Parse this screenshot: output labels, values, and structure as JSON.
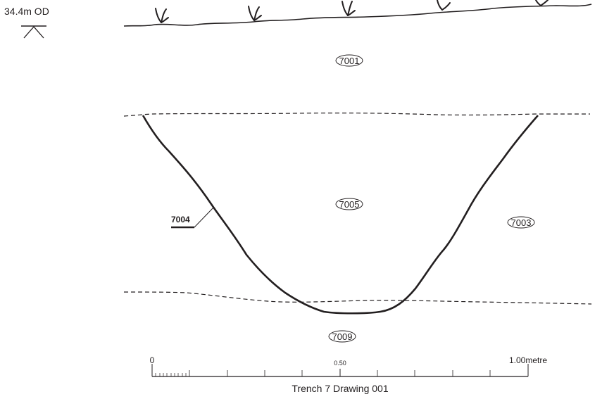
{
  "datum": {
    "label": "34.4m OD"
  },
  "contexts": {
    "topsoil": "7001",
    "fill": "7005",
    "natural": "7003",
    "lower": "7009",
    "cut": "7004"
  },
  "scale": {
    "start_label": "0",
    "mid_label": "0.50",
    "end_label": "1.00metre"
  },
  "caption": "Trench 7 Drawing 001",
  "colors": {
    "ink": "#231f20",
    "background": "#ffffff"
  }
}
